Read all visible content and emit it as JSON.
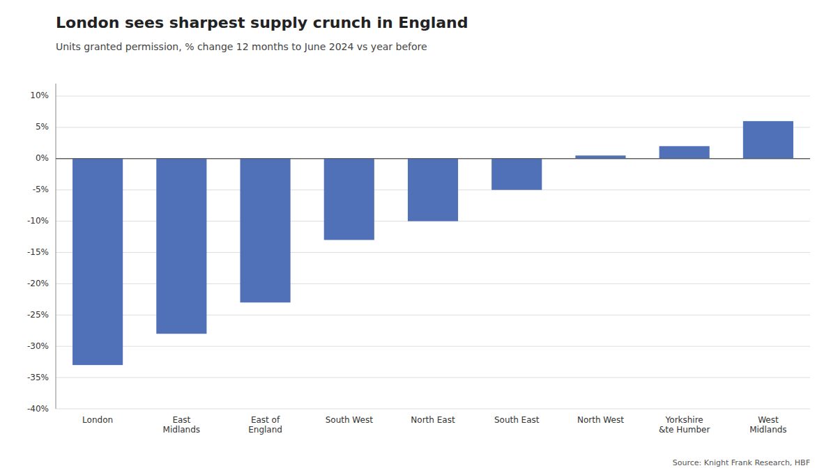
{
  "chart_data": {
    "type": "bar",
    "title": "London sees sharpest supply crunch in England",
    "subtitle": "Units granted permission, % change 12 months to June 2024 vs year before",
    "source": "Source: Knight Frank Research, HBF",
    "categories": [
      "London",
      "East\nMidlands",
      "East of\nEngland",
      "South West",
      "North East",
      "South East",
      "North West",
      "Yorkshire\n&te Humber",
      "West\nMidlands"
    ],
    "values": [
      -33.0,
      -28.0,
      -23.0,
      -13.0,
      -10.0,
      -5.0,
      0.5,
      2.0,
      6.0
    ],
    "color": "#5070b8",
    "ylim": [
      -40,
      12
    ],
    "yticks": [
      {
        "value": -40,
        "label": "-40%"
      },
      {
        "value": -35,
        "label": "-35%"
      },
      {
        "value": -30,
        "label": "-30%"
      },
      {
        "value": -25,
        "label": "-25%"
      },
      {
        "value": -20,
        "label": "-20%"
      },
      {
        "value": -15,
        "label": "-15%"
      },
      {
        "value": -10,
        "label": "-10%"
      },
      {
        "value": -5,
        "label": "-5%"
      },
      {
        "value": 0,
        "label": "0%"
      },
      {
        "value": 5,
        "label": "5%"
      },
      {
        "value": 10,
        "label": "10%"
      }
    ],
    "grid": true
  }
}
